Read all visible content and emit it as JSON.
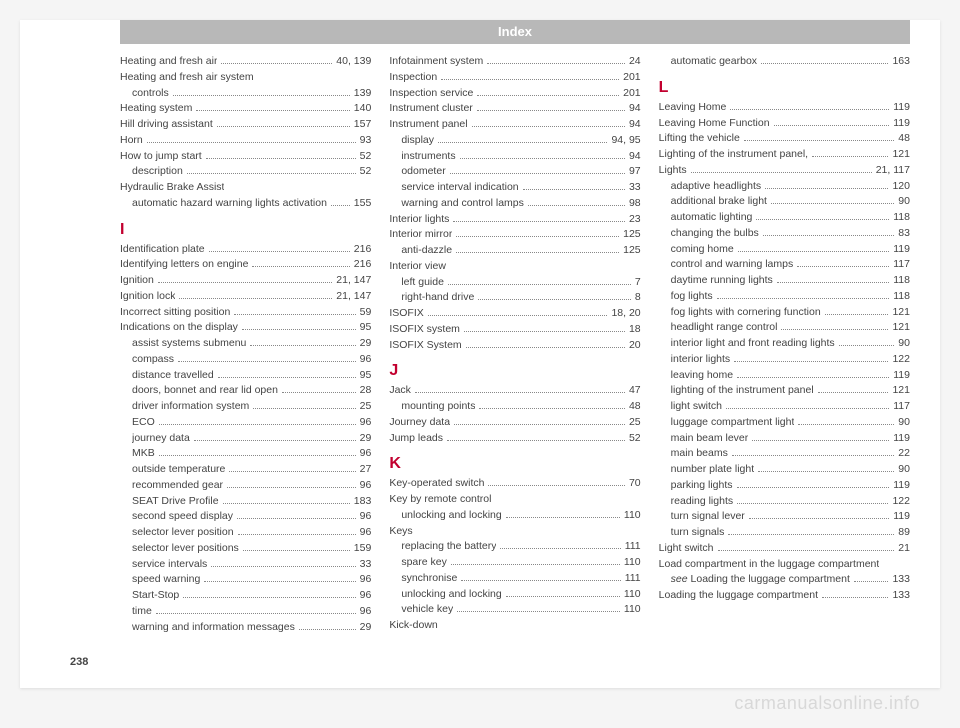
{
  "header": "Index",
  "pageNumber": "238",
  "watermark": "carmanualsonline.info",
  "sectionColor": "#c2002f",
  "columns": [
    {
      "t": "entry",
      "label": "Heating and fresh air",
      "page": "40, 139"
    },
    {
      "t": "entry",
      "label": "Heating and fresh air system",
      "page": "",
      "nopage": true
    },
    {
      "t": "sub",
      "label": "controls",
      "page": "139"
    },
    {
      "t": "entry",
      "label": "Heating system",
      "page": "140"
    },
    {
      "t": "entry",
      "label": "Hill driving assistant",
      "page": "157"
    },
    {
      "t": "entry",
      "label": "Horn",
      "page": "93"
    },
    {
      "t": "entry",
      "label": "How to jump start",
      "page": "52"
    },
    {
      "t": "sub",
      "label": "description",
      "page": "52"
    },
    {
      "t": "entry",
      "label": "Hydraulic Brake Assist",
      "page": "",
      "nopage": true
    },
    {
      "t": "sub",
      "label": "automatic hazard warning lights activation",
      "page": "155"
    },
    {
      "t": "letter",
      "label": "I"
    },
    {
      "t": "entry",
      "label": "Identification plate",
      "page": "216"
    },
    {
      "t": "entry",
      "label": "Identifying letters on engine",
      "page": "216"
    },
    {
      "t": "entry",
      "label": "Ignition",
      "page": "21, 147"
    },
    {
      "t": "entry",
      "label": "Ignition lock",
      "page": "21, 147"
    },
    {
      "t": "entry",
      "label": "Incorrect sitting position",
      "page": "59"
    },
    {
      "t": "entry",
      "label": "Indications on the display",
      "page": "95"
    },
    {
      "t": "sub",
      "label": "assist systems submenu",
      "page": "29"
    },
    {
      "t": "sub",
      "label": "compass",
      "page": "96"
    },
    {
      "t": "sub",
      "label": "distance travelled",
      "page": "95"
    },
    {
      "t": "sub",
      "label": "doors, bonnet and rear lid open",
      "page": "28"
    },
    {
      "t": "sub",
      "label": "driver information system",
      "page": "25"
    },
    {
      "t": "sub",
      "label": "ECO",
      "page": "96"
    },
    {
      "t": "sub",
      "label": "journey data",
      "page": "29"
    },
    {
      "t": "sub",
      "label": "MKB",
      "page": "96"
    },
    {
      "t": "sub",
      "label": "outside temperature",
      "page": "27"
    },
    {
      "t": "sub",
      "label": "recommended gear",
      "page": "96"
    },
    {
      "t": "sub",
      "label": "SEAT Drive Profile",
      "page": "183"
    },
    {
      "t": "sub",
      "label": "second speed display",
      "page": "96"
    },
    {
      "t": "sub",
      "label": "selector lever position",
      "page": "96"
    },
    {
      "t": "sub",
      "label": "selector lever positions",
      "page": "159"
    },
    {
      "t": "sub",
      "label": "service intervals",
      "page": "33"
    },
    {
      "t": "sub",
      "label": "speed warning",
      "page": "96"
    },
    {
      "t": "sub",
      "label": "Start-Stop",
      "page": "96"
    },
    {
      "t": "sub",
      "label": "time",
      "page": "96"
    },
    {
      "t": "sub",
      "label": "warning and information messages",
      "page": "29"
    },
    {
      "t": "entry",
      "label": "Infotainment system",
      "page": "24"
    },
    {
      "t": "entry",
      "label": "Inspection",
      "page": "201"
    },
    {
      "t": "entry",
      "label": "Inspection service",
      "page": "201"
    },
    {
      "t": "entry",
      "label": "Instrument cluster",
      "page": "94"
    },
    {
      "t": "entry",
      "label": "Instrument panel",
      "page": "94"
    },
    {
      "t": "sub",
      "label": "display",
      "page": "94, 95"
    },
    {
      "t": "sub",
      "label": "instruments",
      "page": "94"
    },
    {
      "t": "sub",
      "label": "odometer",
      "page": "97"
    },
    {
      "t": "sub",
      "label": "service interval indication",
      "page": "33"
    },
    {
      "t": "sub",
      "label": "warning and control lamps",
      "page": "98"
    },
    {
      "t": "entry",
      "label": "Interior lights",
      "page": "23"
    },
    {
      "t": "entry",
      "label": "Interior mirror",
      "page": "125"
    },
    {
      "t": "sub",
      "label": "anti-dazzle",
      "page": "125"
    },
    {
      "t": "entry",
      "label": "Interior view",
      "page": "",
      "nopage": true
    },
    {
      "t": "sub",
      "label": "left guide",
      "page": "7"
    },
    {
      "t": "sub",
      "label": "right-hand drive",
      "page": "8"
    },
    {
      "t": "entry",
      "label": "ISOFIX",
      "page": "18, 20"
    },
    {
      "t": "entry",
      "label": "ISOFIX system",
      "page": "18"
    },
    {
      "t": "entry",
      "label": "ISOFIX System",
      "page": "20"
    },
    {
      "t": "letter",
      "label": "J"
    },
    {
      "t": "entry",
      "label": "Jack",
      "page": "47"
    },
    {
      "t": "sub",
      "label": "mounting points",
      "page": "48"
    },
    {
      "t": "entry",
      "label": "Journey data",
      "page": "25"
    },
    {
      "t": "entry",
      "label": "Jump leads",
      "page": "52"
    },
    {
      "t": "letter",
      "label": "K"
    },
    {
      "t": "entry",
      "label": "Key-operated switch",
      "page": "70"
    },
    {
      "t": "entry",
      "label": "Key by remote control",
      "page": "",
      "nopage": true
    },
    {
      "t": "sub",
      "label": "unlocking and locking",
      "page": "110"
    },
    {
      "t": "entry",
      "label": "Keys",
      "page": "",
      "nopage": true
    },
    {
      "t": "sub",
      "label": "replacing the battery",
      "page": "111"
    },
    {
      "t": "sub",
      "label": "spare key",
      "page": "110"
    },
    {
      "t": "sub",
      "label": "synchronise",
      "page": "111"
    },
    {
      "t": "sub",
      "label": "unlocking and locking",
      "page": "110"
    },
    {
      "t": "sub",
      "label": "vehicle key",
      "page": "110"
    },
    {
      "t": "entry",
      "label": "Kick-down",
      "page": "",
      "nopage": true
    },
    {
      "t": "sub",
      "label": "automatic gearbox",
      "page": "163"
    },
    {
      "t": "letter",
      "label": "L"
    },
    {
      "t": "entry",
      "label": "Leaving Home",
      "page": "119"
    },
    {
      "t": "entry",
      "label": "Leaving Home Function",
      "page": "119"
    },
    {
      "t": "entry",
      "label": "Lifting the vehicle",
      "page": "48"
    },
    {
      "t": "entry",
      "label": "Lighting of the instrument panel,",
      "page": "121"
    },
    {
      "t": "entry",
      "label": "Lights",
      "page": "21, 117"
    },
    {
      "t": "sub",
      "label": "adaptive headlights",
      "page": "120"
    },
    {
      "t": "sub",
      "label": "additional brake light",
      "page": "90"
    },
    {
      "t": "sub",
      "label": "automatic lighting",
      "page": "118"
    },
    {
      "t": "sub",
      "label": "changing the bulbs",
      "page": "83"
    },
    {
      "t": "sub",
      "label": "coming home",
      "page": "119"
    },
    {
      "t": "sub",
      "label": "control and warning lamps",
      "page": "117"
    },
    {
      "t": "sub",
      "label": "daytime running lights",
      "page": "118"
    },
    {
      "t": "sub",
      "label": "fog lights",
      "page": "118"
    },
    {
      "t": "sub",
      "label": "fog lights with cornering function",
      "page": "121"
    },
    {
      "t": "sub",
      "label": "headlight range control",
      "page": "121"
    },
    {
      "t": "sub",
      "label": "interior light and front reading lights",
      "page": "90"
    },
    {
      "t": "sub",
      "label": "interior lights",
      "page": "122"
    },
    {
      "t": "sub",
      "label": "leaving home",
      "page": "119"
    },
    {
      "t": "sub",
      "label": "lighting of the instrument panel",
      "page": "121"
    },
    {
      "t": "sub",
      "label": "light switch",
      "page": "117"
    },
    {
      "t": "sub",
      "label": "luggage compartment light",
      "page": "90"
    },
    {
      "t": "sub",
      "label": "main beam lever",
      "page": "119"
    },
    {
      "t": "sub",
      "label": "main beams",
      "page": "22"
    },
    {
      "t": "sub",
      "label": "number plate light",
      "page": "90"
    },
    {
      "t": "sub",
      "label": "parking lights",
      "page": "119"
    },
    {
      "t": "sub",
      "label": "reading lights",
      "page": "122"
    },
    {
      "t": "sub",
      "label": "turn signal lever",
      "page": "119"
    },
    {
      "t": "sub",
      "label": "turn signals",
      "page": "89"
    },
    {
      "t": "entry",
      "label": "Light switch",
      "page": "21"
    },
    {
      "t": "entry",
      "label": "Load compartment in the luggage compartment",
      "page": "",
      "nopage": true
    },
    {
      "t": "sub",
      "label": "see Loading the luggage compartment",
      "page": "133",
      "italic": true
    },
    {
      "t": "entry",
      "label": "Loading the luggage compartment",
      "page": "133"
    }
  ]
}
